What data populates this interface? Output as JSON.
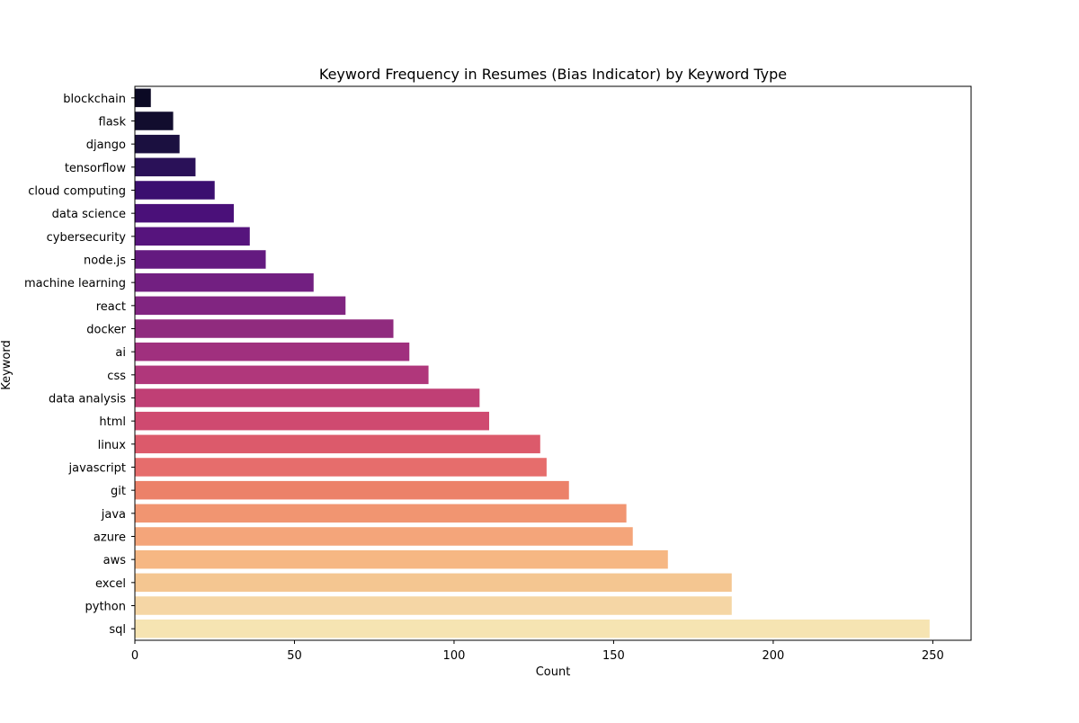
{
  "chart_data": {
    "type": "bar",
    "orientation": "horizontal",
    "title": "Keyword Frequency in Resumes (Bias Indicator) by Keyword Type",
    "xlabel": "Count",
    "ylabel": "Keyword",
    "xlim": [
      0,
      262
    ],
    "xticks": [
      0,
      50,
      100,
      150,
      200,
      250
    ],
    "grid": false,
    "palette": "magma",
    "categories": [
      "blockchain",
      "flask",
      "django",
      "tensorflow",
      "cloud computing",
      "data science",
      "cybersecurity",
      "node.js",
      "machine learning",
      "react",
      "docker",
      "ai",
      "css",
      "data analysis",
      "html",
      "linux",
      "javascript",
      "git",
      "java",
      "azure",
      "aws",
      "excel",
      "python",
      "sql"
    ],
    "values": [
      5,
      12,
      14,
      19,
      25,
      31,
      36,
      41,
      56,
      66,
      81,
      86,
      92,
      108,
      111,
      127,
      129,
      136,
      154,
      156,
      167,
      187,
      187,
      249
    ],
    "colors": [
      "#0b0924",
      "#120d2e",
      "#1b1040",
      "#2a1158",
      "#3b0f70",
      "#4a1079",
      "#56147d",
      "#641a80",
      "#721f81",
      "#812581",
      "#902b7e",
      "#a0307e",
      "#b0377b",
      "#c03f75",
      "#cf4a70",
      "#dc5a6b",
      "#e66d6c",
      "#ec8169",
      "#f19571",
      "#f4a57a",
      "#f6b783",
      "#f4c691",
      "#f5d6a5",
      "#f6e4b2"
    ]
  }
}
